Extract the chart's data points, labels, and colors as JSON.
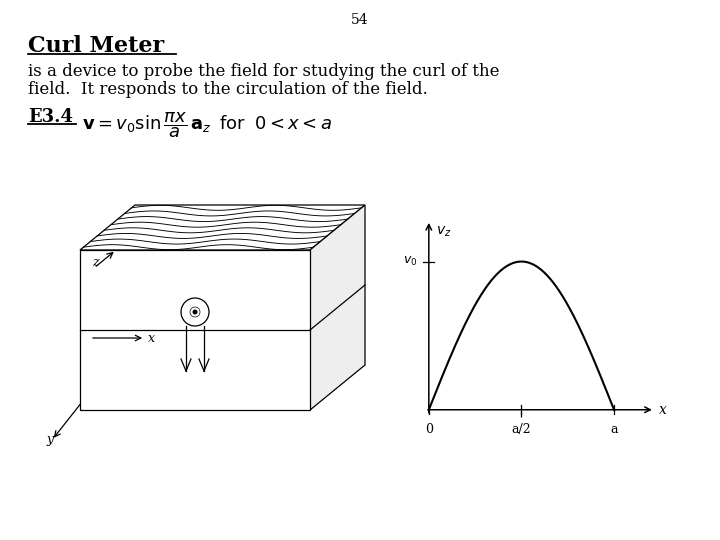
{
  "page_number": "54",
  "title": "Curl Meter",
  "body_text_line1": "is a device to probe the field for studying the curl of the",
  "body_text_line2": "field.  It responds to the circulation of the field.",
  "example_label": "E3.4",
  "bg_color": "#ffffff",
  "text_color": "#000000",
  "graph_xlabel": "x",
  "graph_ylabel": "v_z",
  "graph_y_label_tick": "v_0",
  "graph_x_ticks": [
    "0",
    "a/2",
    "a"
  ],
  "title_fontsize": 16,
  "body_fontsize": 12,
  "label_fontsize": 13,
  "formula_fontsize": 13
}
